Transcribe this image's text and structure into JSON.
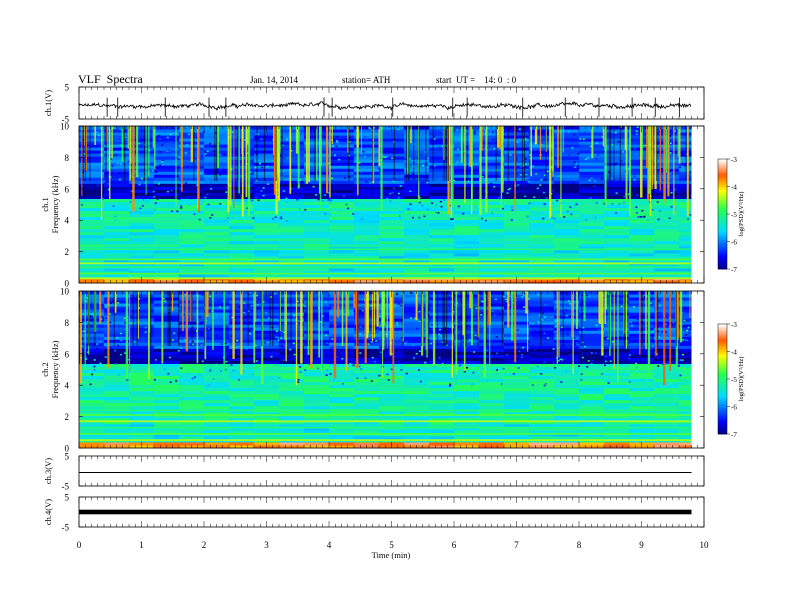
{
  "header": {
    "title": "VLF  Spectra",
    "date": "Jan. 14, 2014",
    "station": "station= ATH",
    "start": "start  UT =    14: 0  : 0"
  },
  "chart_data": [
    {
      "type": "line",
      "name": "ch1-waveform",
      "ylabel": "ch.1(V)",
      "yticks": [
        "5",
        "-5"
      ],
      "ylim": [
        -5,
        5
      ],
      "xlim": [
        0,
        10
      ],
      "data_extent_min": 9.8,
      "trace": "noisy",
      "level_v": -0.9,
      "spike_times_min": [
        0.45,
        0.62,
        1.38,
        2.08,
        2.35,
        3.92,
        4.05,
        5.02,
        5.98,
        6.21,
        7.1,
        7.78,
        8.32,
        8.85,
        9.22,
        9.61
      ],
      "color": "#000000"
    },
    {
      "type": "heatmap",
      "name": "ch1-spectrogram",
      "ylabel": "ch.1\nFrequency  (kHz)",
      "yticks": [
        "0",
        "2",
        "4",
        "6",
        "8",
        "10"
      ],
      "ylim": [
        0,
        10
      ],
      "xlim": [
        0,
        10
      ],
      "data_extent_min": 9.8,
      "colorbar": {
        "label": "log(PSD)(V²/Hz)",
        "ticks": [
          "-3",
          "-4",
          "-5",
          "-6",
          "-7"
        ],
        "range": [
          -7,
          -3
        ]
      },
      "dominant_bands_khz": [
        {
          "from": 5.3,
          "to": 6.4,
          "level": -6.8
        },
        {
          "from": 2.4,
          "to": 5.3,
          "level": -5.3
        },
        {
          "from": 6.4,
          "to": 10,
          "level": -6.2
        }
      ],
      "lines_khz": [
        0.3,
        0.6,
        1.0,
        1.25,
        1.5,
        2.15
      ]
    },
    {
      "type": "heatmap",
      "name": "ch2-spectrogram",
      "ylabel": "ch.2\nFrequency  (kHz)",
      "yticks": [
        "0",
        "2",
        "4",
        "6",
        "8",
        "10"
      ],
      "ylim": [
        0,
        10
      ],
      "xlim": [
        0,
        10
      ],
      "data_extent_min": 9.8,
      "colorbar": {
        "label": "log(PSD)(V²/Hz)",
        "ticks": [
          "-3",
          "-4",
          "-5",
          "-6",
          "-7"
        ],
        "range": [
          -7,
          -3
        ]
      },
      "dominant_bands_khz": [
        {
          "from": 5.3,
          "to": 6.4,
          "level": -6.8
        },
        {
          "from": 1.6,
          "to": 5.3,
          "level": -5.2
        },
        {
          "from": 6.4,
          "to": 10,
          "level": -6.2
        }
      ],
      "lines_khz": [
        0.5,
        0.9,
        1.3,
        1.7,
        2.1,
        2.4
      ]
    },
    {
      "type": "line",
      "name": "ch3-waveform",
      "ylabel": "ch.3(V)",
      "yticks": [
        "5",
        "-5"
      ],
      "ylim": [
        -5,
        5
      ],
      "xlim": [
        0,
        10
      ],
      "data_extent_min": 9.8,
      "trace": "flat",
      "level_v": -0.5,
      "color": "#000000"
    },
    {
      "type": "line",
      "name": "ch4-waveform",
      "ylabel": "ch.4(V)",
      "yticks": [
        "5",
        "-5"
      ],
      "ylim": [
        -5,
        5
      ],
      "xlim": [
        0,
        10
      ],
      "data_extent_min": 9.8,
      "trace": "thick",
      "level_v": 0,
      "color": "#000000"
    }
  ],
  "xaxis": {
    "label": "Time  (min)",
    "ticks": [
      "0",
      "1",
      "2",
      "3",
      "4",
      "5",
      "6",
      "7",
      "8",
      "9",
      "10"
    ]
  }
}
